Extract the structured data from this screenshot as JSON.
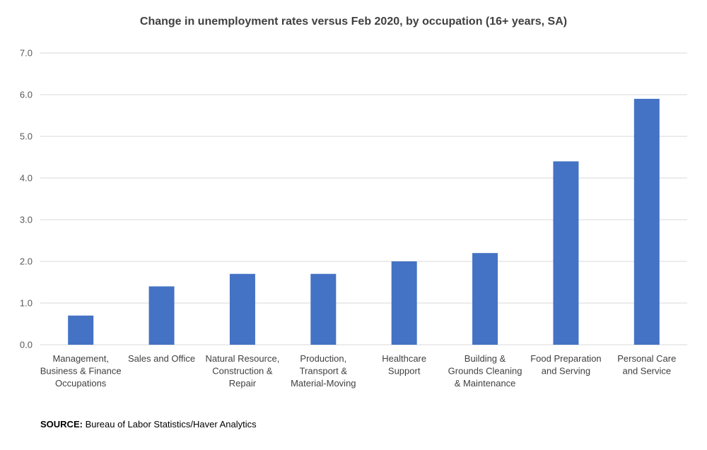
{
  "chart_data": {
    "type": "bar",
    "title": "Change in unemployment rates versus Feb 2020, by occupation (16+ years, SA)",
    "categories": [
      [
        "Management,",
        "Business & Finance",
        "Occupations"
      ],
      [
        "Sales and Office"
      ],
      [
        "Natural Resource,",
        "Construction &",
        "Repair"
      ],
      [
        "Production,",
        "Transport &",
        "Material-Moving"
      ],
      [
        "Healthcare",
        "Support"
      ],
      [
        "Building &",
        "Grounds Cleaning",
        "& Maintenance"
      ],
      [
        "Food Preparation",
        "and Serving"
      ],
      [
        "Personal Care",
        "and Service"
      ]
    ],
    "values": [
      0.7,
      1.4,
      1.7,
      1.7,
      2.0,
      2.2,
      4.4,
      5.9
    ],
    "yticks": [
      "0.0",
      "1.0",
      "2.0",
      "3.0",
      "4.0",
      "5.0",
      "6.0",
      "7.0"
    ],
    "ylim": [
      0,
      7
    ],
    "grid": true,
    "bar_color": "#4472C4",
    "grid_color": "#D9D9D9"
  },
  "source": {
    "label": "SOURCE:",
    "text": " Bureau of Labor Statistics/Haver Analytics"
  }
}
